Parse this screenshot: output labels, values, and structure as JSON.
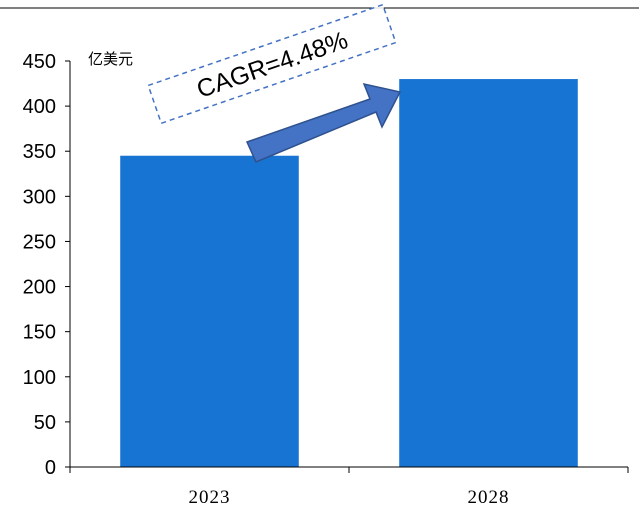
{
  "chart_data": {
    "type": "bar",
    "categories": [
      "2023",
      "2028"
    ],
    "series": [
      {
        "values": [
          345,
          430
        ]
      }
    ],
    "ylim": [
      0,
      450
    ],
    "yticks": [
      0,
      50,
      100,
      150,
      200,
      250,
      300,
      350,
      400,
      450
    ],
    "unit_label": "亿美元",
    "annotation": "CAGR=4.48%",
    "bar_color": "#1874d2",
    "arrow_color": "#4472c4",
    "annotation_border_color": "#4472c4",
    "grid": false,
    "legend": "none"
  }
}
